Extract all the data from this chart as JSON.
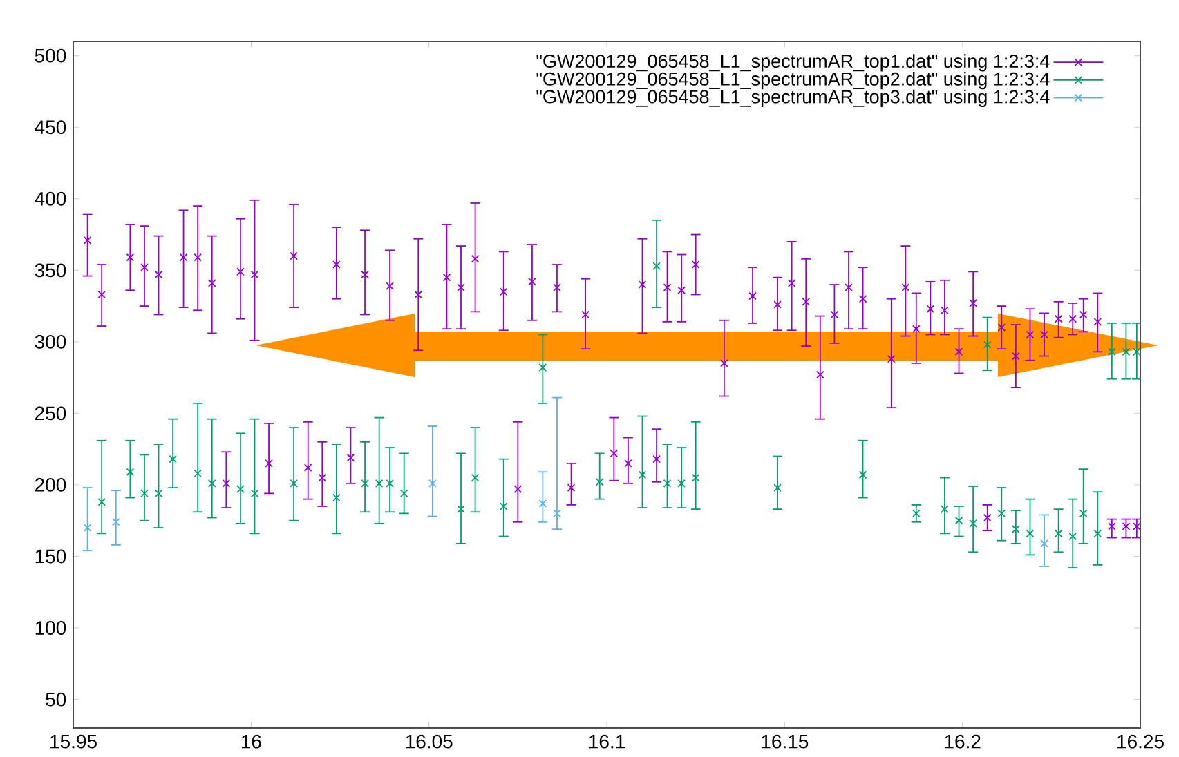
{
  "chart_data": {
    "type": "scatter",
    "xlim": [
      15.95,
      16.25
    ],
    "ylim": [
      30,
      510
    ],
    "xticks": [
      15.95,
      16,
      16.05,
      16.1,
      16.15,
      16.2,
      16.25
    ],
    "yticks": [
      50,
      100,
      150,
      200,
      250,
      300,
      350,
      400,
      450,
      500
    ],
    "legend": "top right",
    "series": [
      {
        "name": "\"GW200129_065458_L1_spectrumAR_top1.dat\" using 1:2:3:4",
        "color": "#9400d3",
        "marker": "cross",
        "x": [
          15.954,
          15.958,
          15.966,
          15.97,
          15.974,
          15.981,
          15.985,
          15.989,
          15.993,
          15.997,
          16.001,
          16.005,
          16.012,
          16.016,
          16.02,
          16.024,
          16.028,
          16.032,
          16.039,
          16.047,
          16.055,
          16.059,
          16.063,
          16.071,
          16.075,
          16.079,
          16.086,
          16.09,
          16.094,
          16.102,
          16.106,
          16.11,
          16.114,
          16.117,
          16.121,
          16.125,
          16.133,
          16.141,
          16.148,
          16.152,
          16.156,
          16.16,
          16.164,
          16.168,
          16.172,
          16.18,
          16.184,
          16.187,
          16.191,
          16.195,
          16.199,
          16.203,
          16.207,
          16.211,
          16.215,
          16.219,
          16.223,
          16.227,
          16.231,
          16.234,
          16.238,
          16.242,
          16.246,
          16.249
        ],
        "values": [
          371,
          333,
          359,
          352,
          347,
          359,
          359,
          341,
          201,
          349,
          347,
          215,
          360,
          212,
          205,
          354,
          219,
          347,
          339,
          333,
          345,
          338,
          358,
          335,
          197,
          342,
          338,
          198,
          319,
          222,
          215,
          340,
          218,
          338,
          336,
          354,
          285,
          332,
          326,
          341,
          328,
          277,
          319,
          338,
          330,
          288,
          338,
          309,
          323,
          322,
          293,
          327,
          177,
          310,
          290,
          305,
          305,
          316,
          316,
          319,
          314,
          171,
          171,
          171
        ],
        "errors": [
          [
            346,
            389
          ],
          [
            311,
            354
          ],
          [
            336,
            382
          ],
          [
            325,
            381
          ],
          [
            319,
            374
          ],
          [
            324,
            392
          ],
          [
            322,
            395
          ],
          [
            306,
            374
          ],
          [
            184,
            223
          ],
          [
            316,
            386
          ],
          [
            301,
            399
          ],
          [
            194,
            243
          ],
          [
            324,
            396
          ],
          [
            190,
            244
          ],
          [
            185,
            230
          ],
          [
            330,
            380
          ],
          [
            201,
            240
          ],
          [
            319,
            378
          ],
          [
            315,
            364
          ],
          [
            294,
            372
          ],
          [
            309,
            382
          ],
          [
            309,
            367
          ],
          [
            321,
            397
          ],
          [
            308,
            363
          ],
          [
            174,
            244
          ],
          [
            315,
            368
          ],
          [
            321,
            354
          ],
          [
            186,
            215
          ],
          [
            295,
            344
          ],
          [
            203,
            247
          ],
          [
            201,
            233
          ],
          [
            306,
            372
          ],
          [
            202,
            239
          ],
          [
            314,
            363
          ],
          [
            314,
            361
          ],
          [
            333,
            375
          ],
          [
            262,
            315
          ],
          [
            313,
            352
          ],
          [
            308,
            345
          ],
          [
            308,
            370
          ],
          [
            297,
            358
          ],
          [
            246,
            318
          ],
          [
            299,
            340
          ],
          [
            309,
            363
          ],
          [
            309,
            352
          ],
          [
            254,
            330
          ],
          [
            304,
            367
          ],
          [
            285,
            334
          ],
          [
            305,
            342
          ],
          [
            305,
            343
          ],
          [
            278,
            309
          ],
          [
            304,
            349
          ],
          [
            168,
            186
          ],
          [
            295,
            325
          ],
          [
            268,
            312
          ],
          [
            287,
            323
          ],
          [
            290,
            320
          ],
          [
            303,
            328
          ],
          [
            305,
            327
          ],
          [
            307,
            330
          ],
          [
            293,
            334
          ],
          [
            163,
            176
          ],
          [
            163,
            176
          ],
          [
            163,
            176
          ]
        ]
      },
      {
        "name": "\"GW200129_065458_L1_spectrumAR_top2.dat\" using 1:2:3:4",
        "color": "#009e73",
        "marker": "cross",
        "x": [
          15.958,
          15.966,
          15.97,
          15.974,
          15.978,
          15.985,
          15.989,
          15.997,
          16.001,
          16.012,
          16.024,
          16.032,
          16.036,
          16.039,
          16.043,
          16.059,
          16.063,
          16.071,
          16.082,
          16.098,
          16.11,
          16.114,
          16.117,
          16.121,
          16.125,
          16.148,
          16.172,
          16.187,
          16.195,
          16.199,
          16.203,
          16.207,
          16.211,
          16.215,
          16.219,
          16.227,
          16.231,
          16.234,
          16.238,
          16.242,
          16.246,
          16.249
        ],
        "values": [
          188,
          209,
          194,
          194,
          218,
          208,
          201,
          197,
          194,
          201,
          191,
          201,
          201,
          201,
          194,
          183,
          205,
          185,
          282,
          202,
          207,
          353,
          201,
          201,
          205,
          198,
          207,
          180,
          183,
          175,
          173,
          298,
          180,
          169,
          166,
          166,
          164,
          180,
          166,
          293,
          293,
          293
        ],
        "errors": [
          [
            166,
            231
          ],
          [
            191,
            231
          ],
          [
            175,
            221
          ],
          [
            170,
            228
          ],
          [
            198,
            246
          ],
          [
            181,
            257
          ],
          [
            177,
            246
          ],
          [
            173,
            236
          ],
          [
            166,
            246
          ],
          [
            175,
            240
          ],
          [
            166,
            228
          ],
          [
            181,
            230
          ],
          [
            173,
            247
          ],
          [
            181,
            226
          ],
          [
            180,
            222
          ],
          [
            159,
            222
          ],
          [
            181,
            240
          ],
          [
            164,
            218
          ],
          [
            257,
            305
          ],
          [
            190,
            222
          ],
          [
            184,
            248
          ],
          [
            324,
            385
          ],
          [
            184,
            228
          ],
          [
            184,
            226
          ],
          [
            183,
            244
          ],
          [
            183,
            220
          ],
          [
            191,
            231
          ],
          [
            174,
            186
          ],
          [
            166,
            205
          ],
          [
            164,
            185
          ],
          [
            153,
            199
          ],
          [
            280,
            317
          ],
          [
            161,
            198
          ],
          [
            159,
            182
          ],
          [
            151,
            190
          ],
          [
            153,
            183
          ],
          [
            142,
            190
          ],
          [
            159,
            211
          ],
          [
            144,
            195
          ],
          [
            274,
            313
          ],
          [
            274,
            313
          ],
          [
            274,
            313
          ]
        ]
      },
      {
        "name": "\"GW200129_065458_L1_spectrumAR_top3.dat\" using 1:2:3:4",
        "color": "#56b4e9",
        "marker": "cross",
        "x": [
          15.954,
          15.962,
          16.051,
          16.082,
          16.086,
          16.223
        ],
        "values": [
          170,
          174,
          201,
          187,
          180,
          159
        ],
        "errors": [
          [
            154,
            198
          ],
          [
            158,
            196
          ],
          [
            178,
            241
          ],
          [
            174,
            209
          ],
          [
            169,
            261
          ],
          [
            143,
            179
          ]
        ]
      }
    ]
  }
}
